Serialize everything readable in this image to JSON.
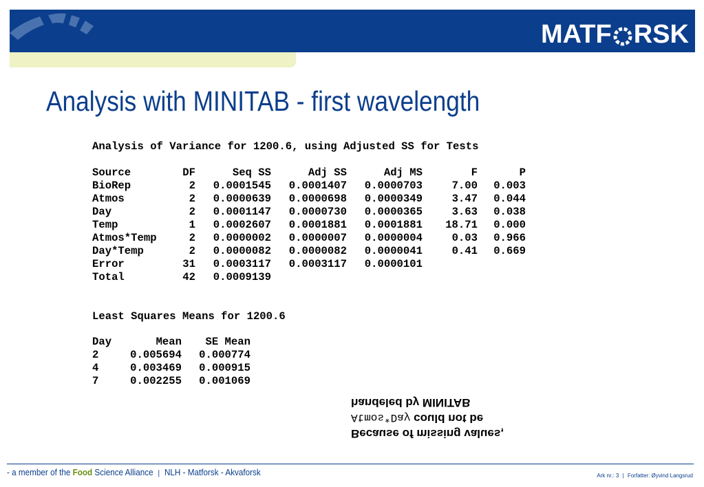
{
  "header": {
    "logo_text_a": "MATF",
    "logo_text_b": "RSK",
    "colors": {
      "band": "#0b3e8c",
      "accent": "#eef2c4",
      "food": "#6a8f14"
    }
  },
  "title": "Analysis with MINITAB - first wavelength",
  "anova": {
    "heading": "Analysis of Variance for 1200.6, using Adjusted SS for Tests",
    "columns": [
      "Source",
      "DF",
      "Seq SS",
      "Adj SS",
      "Adj MS",
      "F",
      "P"
    ],
    "rows": [
      [
        "BioRep",
        "2",
        "0.0001545",
        "0.0001407",
        "0.0000703",
        "7.00",
        "0.003"
      ],
      [
        "Atmos",
        "2",
        "0.0000639",
        "0.0000698",
        "0.0000349",
        "3.47",
        "0.044"
      ],
      [
        "Day",
        "2",
        "0.0001147",
        "0.0000730",
        "0.0000365",
        "3.63",
        "0.038"
      ],
      [
        "Temp",
        "1",
        "0.0002607",
        "0.0001881",
        "0.0001881",
        "18.71",
        "0.000"
      ],
      [
        "Atmos*Temp",
        "2",
        "0.0000002",
        "0.0000007",
        "0.0000004",
        "0.03",
        "0.966"
      ],
      [
        "Day*Temp",
        "2",
        "0.0000082",
        "0.0000082",
        "0.0000041",
        "0.41",
        "0.669"
      ],
      [
        "Error",
        "31",
        "0.0003117",
        "0.0003117",
        "0.0000101",
        "",
        ""
      ],
      [
        "Total",
        "42",
        "0.0009139",
        "",
        "",
        "",
        ""
      ]
    ]
  },
  "lsm": {
    "heading": "Least Squares Means for 1200.6",
    "columns": [
      "Day",
      "Mean",
      "SE Mean"
    ],
    "rows": [
      [
        "2",
        "0.005694",
        "0.000774"
      ],
      [
        "4",
        "0.003469",
        "0.000915"
      ],
      [
        "7",
        "0.002255",
        "0.001069"
      ]
    ]
  },
  "note": {
    "line1": "Because of missing values,",
    "line2_mono": "Atmos*Day",
    "line2_text": " could not be",
    "line3": "handeled by MINITAB"
  },
  "footer": {
    "left_prefix": "- a member of the ",
    "left_food": "Food",
    "left_suffix": " Science Alliance",
    "left_sep": "|",
    "left_partners": "NLH - Matforsk - Akvaforsk",
    "right_slide": "Ark nr.: 3",
    "right_sep": "|",
    "right_author": "Forfatter: Øyvind Langsrud"
  }
}
